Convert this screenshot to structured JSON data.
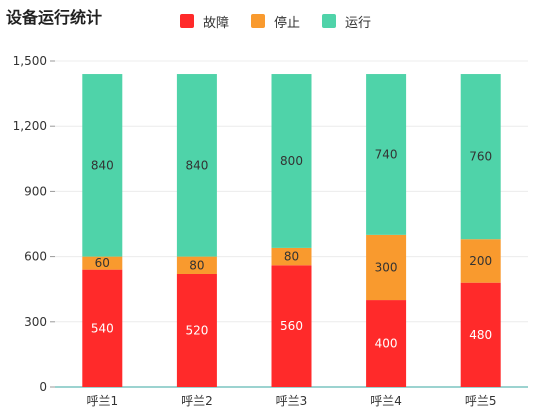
{
  "chart_data": {
    "type": "bar",
    "stacked": true,
    "title": "设备运行统计",
    "categories": [
      "呼兰1",
      "呼兰2",
      "呼兰3",
      "呼兰4",
      "呼兰5"
    ],
    "series": [
      {
        "name": "故障",
        "color": "#ff2a2a",
        "label_color": "#ffffff",
        "values": [
          540,
          520,
          560,
          400,
          480
        ]
      },
      {
        "name": "停止",
        "color": "#f99a2e",
        "label_color": "#333333",
        "values": [
          60,
          80,
          80,
          300,
          200
        ]
      },
      {
        "name": "运行",
        "color": "#4fd3a9",
        "label_color": "#333333",
        "values": [
          840,
          840,
          800,
          740,
          760
        ]
      }
    ],
    "ylim": [
      0,
      1500
    ],
    "yticks": [
      "0",
      "300",
      "600",
      "900",
      "1,200",
      "1,500"
    ],
    "ytick_values": [
      0,
      300,
      600,
      900,
      1200,
      1500
    ],
    "grid": true,
    "legend_position": "top",
    "axis_color": "#3aa7a0"
  }
}
